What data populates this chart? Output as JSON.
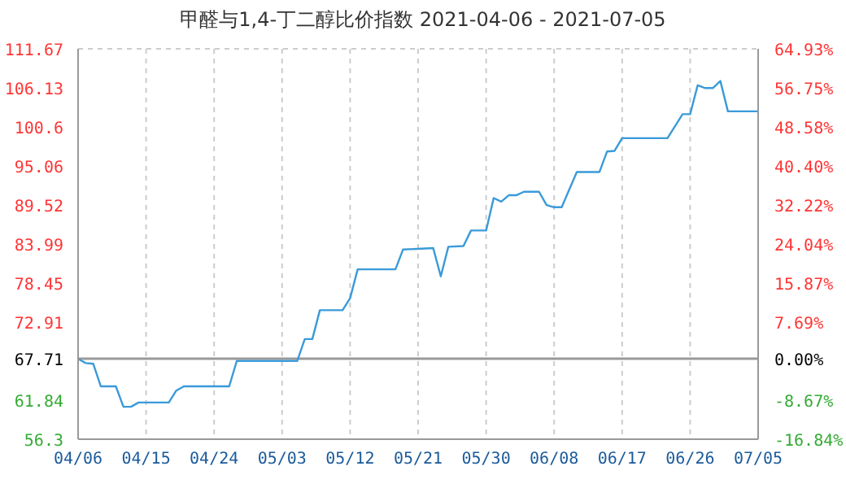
{
  "chart_data": {
    "type": "line",
    "title": "甲醛与1,4-丁二醇比价指数 2021-04-06 - 2021-07-05",
    "x": [
      "2021-04-06",
      "2021-04-07",
      "2021-04-08",
      "2021-04-09",
      "2021-04-11",
      "2021-04-12",
      "2021-04-13",
      "2021-04-14",
      "2021-04-18",
      "2021-04-19",
      "2021-04-20",
      "2021-04-26",
      "2021-04-27",
      "2021-05-05",
      "2021-05-06",
      "2021-05-07",
      "2021-05-08",
      "2021-05-11",
      "2021-05-12",
      "2021-05-13",
      "2021-05-18",
      "2021-05-19",
      "2021-05-23",
      "2021-05-24",
      "2021-05-25",
      "2021-05-27",
      "2021-05-28",
      "2021-05-30",
      "2021-05-31",
      "2021-06-01",
      "2021-06-02",
      "2021-06-03",
      "2021-06-04",
      "2021-06-06",
      "2021-06-07",
      "2021-06-08",
      "2021-06-09",
      "2021-06-11",
      "2021-06-14",
      "2021-06-15",
      "2021-06-16",
      "2021-06-17",
      "2021-06-23",
      "2021-06-25",
      "2021-06-26",
      "2021-06-27",
      "2021-06-28",
      "2021-06-29",
      "2021-06-30",
      "2021-07-01",
      "2021-07-05"
    ],
    "series": [
      {
        "color": "#3a9ad9",
        "values": [
          67.7,
          67.1,
          67.0,
          63.8,
          63.8,
          60.9,
          60.9,
          61.5,
          61.5,
          63.2,
          63.8,
          63.8,
          67.4,
          67.4,
          70.5,
          70.5,
          74.6,
          74.6,
          76.3,
          80.4,
          80.4,
          83.2,
          83.4,
          79.4,
          83.6,
          83.7,
          85.9,
          85.9,
          90.5,
          90.0,
          90.9,
          90.9,
          91.4,
          91.4,
          89.5,
          89.2,
          89.2,
          94.2,
          94.2,
          97.1,
          97.2,
          99.0,
          99.0,
          102.4,
          102.4,
          106.5,
          106.1,
          106.1,
          107.1,
          102.8,
          102.8
        ]
      }
    ],
    "xlim": [
      "2021-04-06",
      "2021-07-05"
    ],
    "xticks": [
      {
        "value": "2021-04-06",
        "label": "04/06"
      },
      {
        "value": "2021-04-15",
        "label": "04/15"
      },
      {
        "value": "2021-04-24",
        "label": "04/24"
      },
      {
        "value": "2021-05-03",
        "label": "05/03"
      },
      {
        "value": "2021-05-12",
        "label": "05/12"
      },
      {
        "value": "2021-05-21",
        "label": "05/21"
      },
      {
        "value": "2021-05-30",
        "label": "05/30"
      },
      {
        "value": "2021-06-08",
        "label": "06/08"
      },
      {
        "value": "2021-06-17",
        "label": "06/17"
      },
      {
        "value": "2021-06-26",
        "label": "06/26"
      },
      {
        "value": "2021-07-05",
        "label": "07/05"
      }
    ],
    "ylim": [
      56.3,
      111.67
    ],
    "yticks": [
      56.3,
      61.84,
      67.71,
      72.91,
      78.45,
      83.99,
      89.52,
      95.06,
      100.6,
      106.13,
      111.67
    ],
    "y2lim": [
      -16.84,
      64.93
    ],
    "y2ticks": [
      {
        "value": -16.84,
        "label": "-16.84%"
      },
      {
        "value": -8.67,
        "label": "-8.67%"
      },
      {
        "value": 0,
        "label": "0.00%"
      },
      {
        "value": 7.69,
        "label": "7.69%"
      },
      {
        "value": 15.87,
        "label": "15.87%"
      },
      {
        "value": 24.04,
        "label": "24.04%"
      },
      {
        "value": 32.22,
        "label": "32.22%"
      },
      {
        "value": 40.4,
        "label": "40.40%"
      },
      {
        "value": 48.58,
        "label": "48.58%"
      },
      {
        "value": 56.75,
        "label": "56.75%"
      },
      {
        "value": 64.93,
        "label": "64.93%"
      }
    ],
    "ref_lines": [
      {
        "axis": "y",
        "value": 67.71,
        "color": "#999999"
      }
    ],
    "grid": true
  }
}
